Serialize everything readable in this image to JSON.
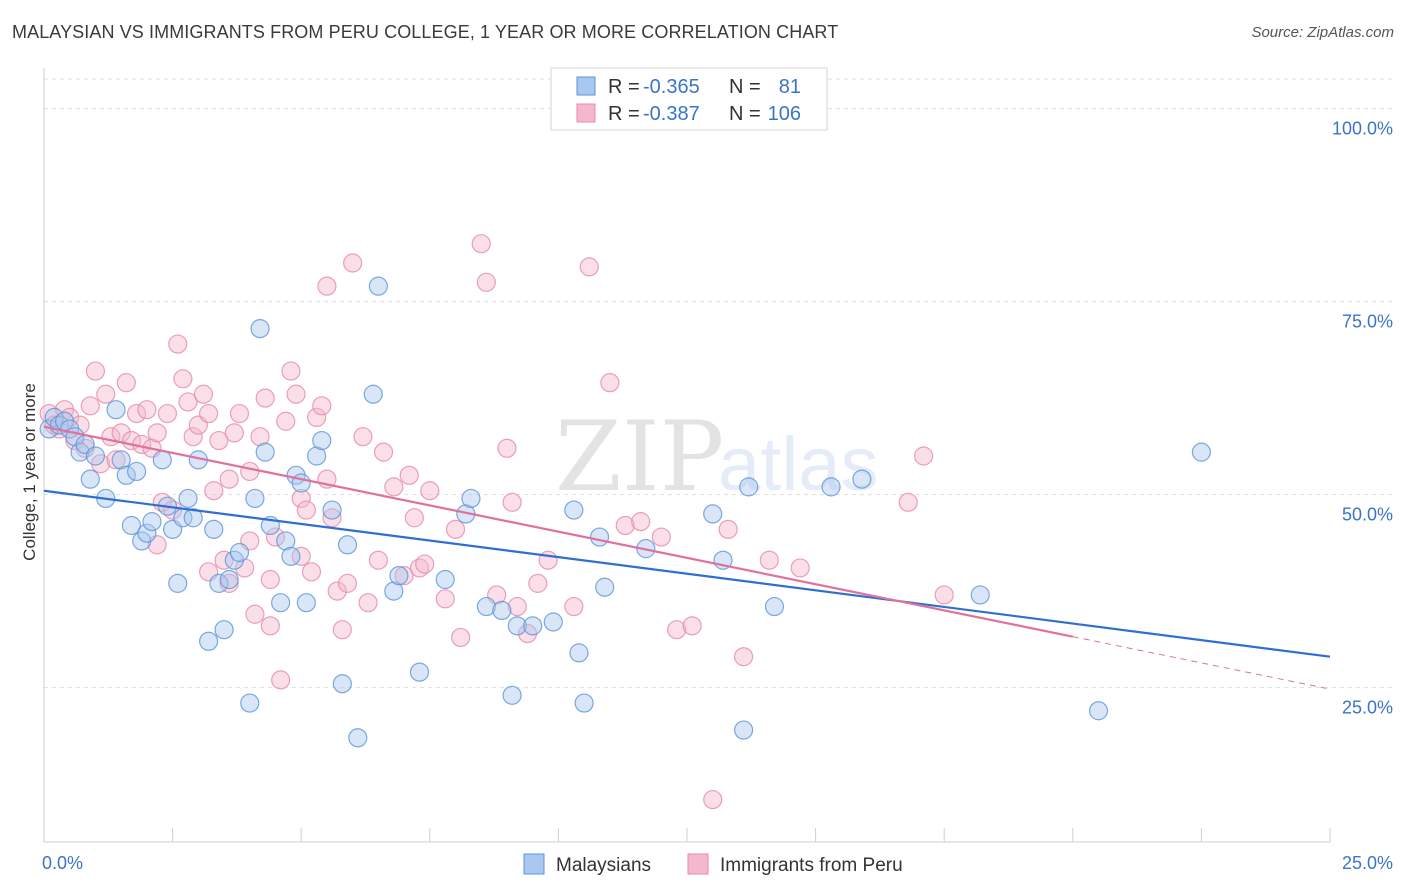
{
  "title": "MALAYSIAN VS IMMIGRANTS FROM PERU COLLEGE, 1 YEAR OR MORE CORRELATION CHART",
  "source": "Source: ZipAtlas.com",
  "watermark": {
    "zip": "ZIP",
    "atlas": "atlas"
  },
  "colors": {
    "blue_fill": "#a9c8f0",
    "blue_stroke": "#5d93d8",
    "blue_line": "#2f6fd0",
    "pink_fill": "#f5b8cb",
    "pink_stroke": "#e58aa8",
    "pink_line": "#e0719a",
    "grid": "#dedede",
    "axis_text": "#3b74c8"
  },
  "legend": {
    "rows": [
      {
        "r_label": "R =",
        "r_value": "-0.365",
        "n_label": "N =",
        "n_value": "81"
      },
      {
        "r_label": "R =",
        "r_value": "-0.387",
        "n_label": "N =",
        "n_value": "106"
      }
    ]
  },
  "chart_data": {
    "type": "scatter",
    "title": "MALAYSIAN VS IMMIGRANTS FROM PERU COLLEGE, 1 YEAR OR MORE CORRELATION CHART",
    "xlabel": "",
    "ylabel": "College, 1 year or more",
    "xlim": [
      0,
      25
    ],
    "ylim": [
      5,
      105
    ],
    "x_tick_labels": [
      "0.0%",
      "25.0%"
    ],
    "y_ticks": [
      25,
      50,
      75,
      100
    ],
    "y_tick_labels": [
      "25.0%",
      "50.0%",
      "75.0%",
      "100.0%"
    ],
    "grid": true,
    "legend_position": "bottom",
    "series": [
      {
        "name": "Malaysians",
        "color": "blue",
        "trend": {
          "x": [
            0,
            25
          ],
          "y": [
            50.5,
            29.0
          ]
        },
        "points": [
          [
            0.1,
            58.5
          ],
          [
            0.2,
            60.0
          ],
          [
            0.3,
            59.0
          ],
          [
            0.4,
            59.5
          ],
          [
            0.5,
            58.5
          ],
          [
            0.6,
            57.5
          ],
          [
            0.7,
            55.5
          ],
          [
            0.8,
            56.5
          ],
          [
            0.9,
            52.0
          ],
          [
            1.0,
            55.0
          ],
          [
            1.2,
            49.5
          ],
          [
            1.4,
            61.0
          ],
          [
            1.5,
            54.5
          ],
          [
            1.6,
            52.5
          ],
          [
            1.7,
            46.0
          ],
          [
            1.8,
            53.0
          ],
          [
            1.9,
            44.0
          ],
          [
            2.0,
            45.0
          ],
          [
            2.1,
            46.5
          ],
          [
            2.3,
            54.5
          ],
          [
            2.4,
            48.5
          ],
          [
            2.5,
            45.5
          ],
          [
            2.6,
            38.5
          ],
          [
            2.7,
            47.0
          ],
          [
            2.8,
            49.5
          ],
          [
            2.9,
            47.0
          ],
          [
            3.0,
            54.5
          ],
          [
            3.2,
            31.0
          ],
          [
            3.3,
            45.5
          ],
          [
            3.4,
            38.5
          ],
          [
            3.5,
            32.5
          ],
          [
            3.6,
            39.0
          ],
          [
            3.7,
            41.5
          ],
          [
            3.8,
            42.5
          ],
          [
            4.0,
            23.0
          ],
          [
            4.1,
            49.5
          ],
          [
            4.2,
            71.5
          ],
          [
            4.3,
            55.5
          ],
          [
            4.4,
            46.0
          ],
          [
            4.6,
            36.0
          ],
          [
            4.7,
            44.0
          ],
          [
            4.8,
            42.0
          ],
          [
            4.9,
            52.5
          ],
          [
            5.0,
            51.5
          ],
          [
            5.1,
            36.0
          ],
          [
            5.3,
            55.0
          ],
          [
            5.4,
            57.0
          ],
          [
            5.6,
            48.0
          ],
          [
            5.8,
            25.5
          ],
          [
            5.9,
            43.5
          ],
          [
            6.1,
            18.5
          ],
          [
            6.4,
            63.0
          ],
          [
            6.5,
            77.0
          ],
          [
            6.8,
            37.5
          ],
          [
            6.9,
            39.5
          ],
          [
            7.3,
            27.0
          ],
          [
            7.8,
            39.0
          ],
          [
            8.2,
            47.5
          ],
          [
            8.3,
            49.5
          ],
          [
            8.6,
            35.5
          ],
          [
            8.9,
            35.0
          ],
          [
            9.1,
            24.0
          ],
          [
            9.2,
            33.0
          ],
          [
            9.5,
            33.0
          ],
          [
            9.9,
            33.5
          ],
          [
            10.3,
            48.0
          ],
          [
            10.4,
            29.5
          ],
          [
            10.5,
            23.0
          ],
          [
            10.8,
            44.5
          ],
          [
            10.9,
            38.0
          ],
          [
            11.7,
            43.0
          ],
          [
            13.0,
            47.5
          ],
          [
            13.2,
            41.5
          ],
          [
            13.6,
            19.5
          ],
          [
            13.7,
            51.0
          ],
          [
            14.2,
            35.5
          ],
          [
            15.3,
            51.0
          ],
          [
            15.9,
            52.0
          ],
          [
            18.2,
            37.0
          ],
          [
            20.5,
            22.0
          ],
          [
            22.5,
            55.5
          ]
        ]
      },
      {
        "name": "Immigrants from Peru",
        "color": "pink",
        "trend": {
          "x": [
            0,
            20
          ],
          "y": [
            58.8,
            31.6
          ]
        },
        "trend_dashed": {
          "x": [
            20,
            25
          ],
          "y": [
            31.6,
            24.8
          ]
        },
        "points": [
          [
            0.1,
            60.5
          ],
          [
            0.2,
            59.0
          ],
          [
            0.3,
            58.5
          ],
          [
            0.4,
            61.0
          ],
          [
            0.5,
            60.0
          ],
          [
            0.6,
            57.0
          ],
          [
            0.7,
            59.0
          ],
          [
            0.8,
            56.0
          ],
          [
            0.9,
            61.5
          ],
          [
            1.0,
            66.0
          ],
          [
            1.1,
            54.0
          ],
          [
            1.2,
            63.0
          ],
          [
            1.3,
            57.5
          ],
          [
            1.4,
            54.5
          ],
          [
            1.5,
            58.0
          ],
          [
            1.6,
            64.5
          ],
          [
            1.7,
            57.0
          ],
          [
            1.8,
            60.5
          ],
          [
            1.9,
            56.5
          ],
          [
            2.0,
            61.0
          ],
          [
            2.1,
            56.0
          ],
          [
            2.2,
            58.0
          ],
          [
            2.3,
            49.0
          ],
          [
            2.4,
            60.5
          ],
          [
            2.5,
            48.0
          ],
          [
            2.6,
            69.5
          ],
          [
            2.7,
            65.0
          ],
          [
            2.8,
            62.0
          ],
          [
            2.9,
            57.5
          ],
          [
            3.0,
            59.0
          ],
          [
            3.1,
            63.0
          ],
          [
            3.2,
            60.5
          ],
          [
            3.3,
            50.5
          ],
          [
            3.4,
            57.0
          ],
          [
            3.5,
            41.5
          ],
          [
            3.6,
            38.5
          ],
          [
            3.7,
            58.0
          ],
          [
            3.8,
            60.5
          ],
          [
            3.9,
            40.5
          ],
          [
            4.0,
            53.0
          ],
          [
            4.1,
            34.5
          ],
          [
            4.2,
            57.5
          ],
          [
            4.3,
            62.5
          ],
          [
            4.4,
            39.0
          ],
          [
            4.5,
            44.5
          ],
          [
            4.6,
            26.0
          ],
          [
            4.7,
            59.5
          ],
          [
            4.8,
            66.0
          ],
          [
            4.9,
            63.0
          ],
          [
            5.0,
            49.5
          ],
          [
            5.1,
            48.0
          ],
          [
            5.2,
            40.0
          ],
          [
            5.3,
            60.0
          ],
          [
            5.4,
            61.5
          ],
          [
            5.5,
            77.0
          ],
          [
            5.6,
            47.0
          ],
          [
            5.7,
            37.5
          ],
          [
            5.8,
            32.5
          ],
          [
            5.9,
            38.5
          ],
          [
            6.0,
            80.0
          ],
          [
            6.2,
            57.5
          ],
          [
            6.3,
            36.0
          ],
          [
            6.5,
            41.5
          ],
          [
            6.8,
            51.0
          ],
          [
            7.0,
            39.5
          ],
          [
            7.1,
            52.5
          ],
          [
            7.2,
            47.0
          ],
          [
            7.3,
            40.5
          ],
          [
            7.5,
            50.5
          ],
          [
            7.8,
            36.5
          ],
          [
            8.1,
            31.5
          ],
          [
            8.5,
            82.5
          ],
          [
            8.6,
            77.5
          ],
          [
            8.8,
            37.0
          ],
          [
            9.0,
            56.0
          ],
          [
            9.2,
            35.5
          ],
          [
            9.4,
            32.0
          ],
          [
            9.6,
            38.5
          ],
          [
            9.8,
            41.5
          ],
          [
            10.3,
            35.5
          ],
          [
            10.6,
            79.5
          ],
          [
            11.0,
            64.5
          ],
          [
            11.3,
            46.0
          ],
          [
            11.6,
            46.5
          ],
          [
            12.0,
            44.5
          ],
          [
            12.3,
            32.5
          ],
          [
            12.6,
            33.0
          ],
          [
            13.0,
            10.5
          ],
          [
            13.3,
            45.5
          ],
          [
            13.6,
            29.0
          ],
          [
            14.1,
            41.5
          ],
          [
            14.7,
            40.5
          ],
          [
            16.8,
            49.0
          ],
          [
            17.1,
            55.0
          ],
          [
            17.5,
            37.0
          ],
          [
            2.2,
            43.5
          ],
          [
            3.2,
            40.0
          ],
          [
            3.6,
            52.0
          ],
          [
            4.0,
            44.0
          ],
          [
            4.4,
            33.0
          ],
          [
            5.0,
            42.0
          ],
          [
            5.5,
            52.0
          ],
          [
            6.6,
            55.5
          ],
          [
            7.4,
            41.0
          ],
          [
            8.0,
            45.5
          ],
          [
            9.1,
            49.0
          ]
        ]
      }
    ]
  }
}
